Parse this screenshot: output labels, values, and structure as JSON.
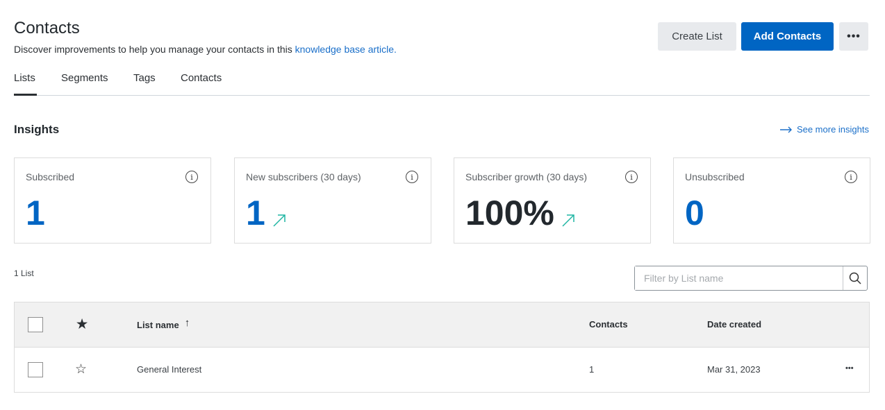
{
  "header": {
    "title": "Contacts",
    "subtitle": "Discover improvements to help you manage your contacts in this ",
    "subtitle_link": "knowledge base article.",
    "create_list": "Create List",
    "add_contacts": "Add Contacts",
    "more": "•••"
  },
  "tabs": [
    {
      "label": "Lists",
      "active": true
    },
    {
      "label": "Segments"
    },
    {
      "label": "Tags"
    },
    {
      "label": "Contacts"
    }
  ],
  "insights": {
    "title": "Insights",
    "see_more": "See more insights",
    "cards": [
      {
        "label": "Subscribed",
        "value": "1"
      },
      {
        "label": "New subscribers (30 days)",
        "value": "1",
        "trend": "up"
      },
      {
        "label": "Subscriber growth (30 days)",
        "value": "100%",
        "trend": "up"
      },
      {
        "label": "Unsubscribed",
        "value": "0"
      }
    ]
  },
  "colors": {
    "accent": "#0065c3",
    "trend": "#1fb5a3"
  },
  "lists": {
    "count": "1 List",
    "filter_placeholder": "Filter by List name",
    "columns": {
      "name": "List name",
      "contacts": "Contacts",
      "date": "Date created"
    },
    "rows": [
      {
        "name": "General Interest",
        "contacts": "1",
        "date": "Mar 31, 2023",
        "more": "•••"
      }
    ]
  }
}
